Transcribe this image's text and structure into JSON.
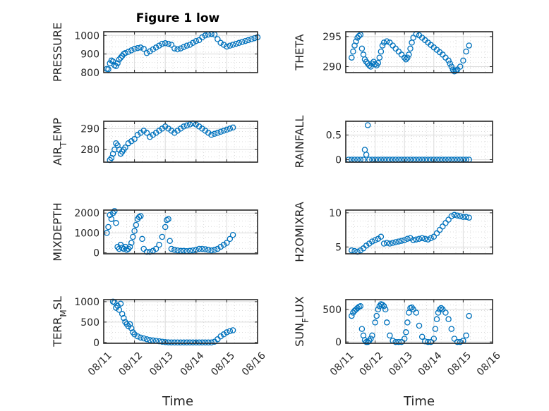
{
  "figure": {
    "title": "Figure 1 low",
    "marker_color": "#0072BD",
    "xlabel": "Time",
    "xtick_labels": [
      "08/11",
      "08/12",
      "08/13",
      "08/14",
      "08/15",
      "08/16"
    ]
  },
  "chart_data": [
    {
      "type": "scatter",
      "ylabel_main": "PRESSURE",
      "ylabel_sub": "",
      "ylabel_tail": "",
      "yticks": [
        800,
        900,
        1000
      ],
      "ylim": [
        800,
        1020
      ],
      "xlim": [
        0,
        5
      ],
      "grid": true,
      "x": [
        0.1,
        0.15,
        0.2,
        0.25,
        0.3,
        0.35,
        0.4,
        0.45,
        0.5,
        0.55,
        0.6,
        0.65,
        0.7,
        0.8,
        0.9,
        1.0,
        1.1,
        1.2,
        1.3,
        1.4,
        1.5,
        1.6,
        1.7,
        1.8,
        1.9,
        2.0,
        2.1,
        2.2,
        2.3,
        2.4,
        2.5,
        2.6,
        2.7,
        2.8,
        2.9,
        3.0,
        3.1,
        3.2,
        3.3,
        3.4,
        3.5,
        3.6,
        3.7,
        3.8,
        3.9,
        4.0,
        4.1,
        4.2,
        4.3,
        4.4,
        4.5,
        4.6,
        4.7,
        4.8,
        4.9,
        5.0
      ],
      "y": [
        820,
        818,
        850,
        865,
        860,
        840,
        835,
        850,
        870,
        880,
        890,
        900,
        905,
        912,
        920,
        928,
        932,
        935,
        928,
        905,
        915,
        925,
        935,
        945,
        955,
        958,
        955,
        950,
        930,
        925,
        930,
        938,
        945,
        950,
        960,
        970,
        975,
        990,
        1000,
        1005,
        1008,
        1005,
        980,
        960,
        950,
        940,
        945,
        950,
        955,
        960,
        965,
        970,
        975,
        980,
        985,
        990
      ]
    },
    {
      "type": "scatter",
      "ylabel_main": "THETA",
      "ylabel_sub": "",
      "ylabel_tail": "",
      "yticks": [
        290,
        295
      ],
      "ylim": [
        289,
        295.8
      ],
      "xlim": [
        0,
        5
      ],
      "grid": true,
      "x": [
        0.2,
        0.25,
        0.3,
        0.35,
        0.4,
        0.45,
        0.5,
        0.55,
        0.6,
        0.65,
        0.7,
        0.75,
        0.8,
        0.85,
        0.9,
        0.95,
        1.0,
        1.05,
        1.1,
        1.15,
        1.2,
        1.25,
        1.3,
        1.4,
        1.5,
        1.6,
        1.7,
        1.8,
        1.9,
        2.0,
        2.05,
        2.1,
        2.15,
        2.2,
        2.25,
        2.3,
        2.4,
        2.5,
        2.6,
        2.7,
        2.8,
        2.9,
        3.0,
        3.1,
        3.2,
        3.3,
        3.4,
        3.5,
        3.55,
        3.6,
        3.65,
        3.7,
        3.75,
        3.8,
        3.9,
        4.0,
        4.1,
        4.2
      ],
      "y": [
        291.5,
        292.5,
        293.5,
        294.2,
        294.8,
        295.1,
        295.3,
        293,
        292,
        291.2,
        290.8,
        290.5,
        290.2,
        290,
        290.5,
        290.8,
        290.4,
        290.2,
        290.6,
        291.5,
        292.5,
        293.5,
        294,
        294.2,
        294,
        293.5,
        293,
        292.5,
        292,
        291.5,
        291.2,
        291.5,
        292,
        293,
        294,
        294.8,
        295.4,
        295.2,
        294.8,
        294.4,
        294,
        293.6,
        293.2,
        292.8,
        292.4,
        292,
        291.5,
        291,
        290.5,
        290,
        289.5,
        289.2,
        289.3,
        289.5,
        290,
        291,
        292.5,
        293.5
      ]
    },
    {
      "type": "scatter",
      "ylabel_main": "AIR",
      "ylabel_sub": "T",
      "ylabel_tail": "EMP",
      "yticks": [
        280,
        290
      ],
      "ylim": [
        274,
        293.5
      ],
      "xlim": [
        0,
        5
      ],
      "grid": true,
      "x": [
        0.2,
        0.25,
        0.3,
        0.35,
        0.4,
        0.45,
        0.5,
        0.55,
        0.6,
        0.65,
        0.7,
        0.8,
        0.9,
        1.0,
        1.1,
        1.2,
        1.3,
        1.4,
        1.5,
        1.6,
        1.7,
        1.8,
        1.9,
        2.0,
        2.1,
        2.2,
        2.3,
        2.4,
        2.5,
        2.6,
        2.7,
        2.8,
        2.9,
        3.0,
        3.1,
        3.2,
        3.3,
        3.4,
        3.5,
        3.6,
        3.7,
        3.8,
        3.9,
        4.0,
        4.1,
        4.2
      ],
      "y": [
        275,
        276,
        278,
        280,
        283,
        282,
        280,
        278,
        279,
        280,
        281,
        283,
        284,
        285,
        287,
        288,
        289,
        288,
        286,
        287,
        288,
        289,
        290,
        291,
        290,
        289,
        288,
        289,
        290,
        291,
        291.5,
        292,
        292.5,
        292,
        291,
        290,
        289,
        288,
        287,
        287.5,
        288,
        288.5,
        289,
        289.5,
        290,
        290.5
      ]
    },
    {
      "type": "scatter",
      "ylabel_main": "RAINFALL",
      "ylabel_sub": "",
      "ylabel_tail": "",
      "yticks": [
        0,
        0.5
      ],
      "ylim": [
        -0.05,
        0.78
      ],
      "xlim": [
        0,
        5
      ],
      "grid": true,
      "x": [
        0.1,
        0.2,
        0.3,
        0.4,
        0.5,
        0.6,
        0.65,
        0.7,
        0.75,
        0.8,
        0.9,
        1.0,
        1.1,
        1.2,
        1.3,
        1.4,
        1.5,
        1.6,
        1.7,
        1.8,
        1.9,
        2.0,
        2.1,
        2.2,
        2.3,
        2.4,
        2.5,
        2.6,
        2.7,
        2.8,
        2.9,
        3.0,
        3.1,
        3.2,
        3.3,
        3.4,
        3.5,
        3.6,
        3.7,
        3.8,
        3.9,
        4.0,
        4.1,
        4.2
      ],
      "y": [
        0,
        0,
        0,
        0,
        0,
        0,
        0.2,
        0.1,
        0.7,
        0,
        0,
        0,
        0,
        0,
        0,
        0,
        0,
        0,
        0,
        0,
        0,
        0,
        0,
        0,
        0,
        0,
        0,
        0,
        0,
        0,
        0,
        0,
        0,
        0,
        0,
        0,
        0,
        0,
        0,
        0,
        0,
        0,
        0,
        0
      ]
    },
    {
      "type": "scatter",
      "ylabel_main": "MIXDEPTH",
      "ylabel_sub": "",
      "ylabel_tail": "",
      "yticks": [
        0,
        1000,
        2000
      ],
      "ylim": [
        -50,
        2150
      ],
      "xlim": [
        0,
        5
      ],
      "grid": true,
      "x": [
        0.1,
        0.15,
        0.2,
        0.25,
        0.3,
        0.35,
        0.4,
        0.45,
        0.5,
        0.55,
        0.6,
        0.65,
        0.7,
        0.75,
        0.8,
        0.85,
        0.9,
        0.95,
        1.0,
        1.05,
        1.1,
        1.15,
        1.2,
        1.25,
        1.3,
        1.4,
        1.5,
        1.6,
        1.7,
        1.8,
        1.9,
        2.0,
        2.05,
        2.1,
        2.15,
        2.2,
        2.3,
        2.4,
        2.5,
        2.6,
        2.7,
        2.8,
        2.9,
        3.0,
        3.1,
        3.2,
        3.3,
        3.4,
        3.5,
        3.6,
        3.7,
        3.8,
        3.9,
        4.0,
        4.1,
        4.2
      ],
      "y": [
        1000,
        1300,
        1900,
        1700,
        2000,
        2100,
        1500,
        300,
        200,
        400,
        250,
        200,
        300,
        150,
        200,
        300,
        500,
        800,
        1100,
        1400,
        1700,
        1800,
        1850,
        700,
        200,
        50,
        50,
        100,
        200,
        400,
        800,
        1300,
        1650,
        1700,
        600,
        200,
        150,
        120,
        100,
        100,
        80,
        100,
        120,
        150,
        200,
        200,
        180,
        150,
        120,
        150,
        200,
        300,
        400,
        500,
        700,
        900
      ]
    },
    {
      "type": "scatter",
      "ylabel_main": "H2OMIXRA",
      "ylabel_sub": "",
      "ylabel_tail": "",
      "yticks": [
        5,
        10
      ],
      "ylim": [
        4,
        10.4
      ],
      "xlim": [
        0,
        5
      ],
      "grid": true,
      "x": [
        0.2,
        0.3,
        0.4,
        0.5,
        0.6,
        0.7,
        0.8,
        0.9,
        1.0,
        1.1,
        1.2,
        1.3,
        1.4,
        1.5,
        1.6,
        1.7,
        1.8,
        1.9,
        2.0,
        2.1,
        2.2,
        2.3,
        2.4,
        2.5,
        2.6,
        2.7,
        2.8,
        2.9,
        3.0,
        3.1,
        3.2,
        3.3,
        3.4,
        3.5,
        3.6,
        3.7,
        3.8,
        3.9,
        4.0,
        4.1,
        4.2
      ],
      "y": [
        4.5,
        4.4,
        4.3,
        4.5,
        4.8,
        5.2,
        5.5,
        5.8,
        6.0,
        6.2,
        6.5,
        5.5,
        5.6,
        5.5,
        5.6,
        5.7,
        5.8,
        5.9,
        6.0,
        6.2,
        6.3,
        6.0,
        6.1,
        6.2,
        6.3,
        6.2,
        6.1,
        6.3,
        6.5,
        7.0,
        7.5,
        8.0,
        8.5,
        9.0,
        9.5,
        9.7,
        9.6,
        9.5,
        9.4,
        9.4,
        9.3
      ]
    },
    {
      "type": "scatter",
      "ylabel_main": "TERR",
      "ylabel_sub": "M",
      "ylabel_tail": "SL",
      "yticks": [
        0,
        500,
        1000
      ],
      "ylim": [
        -20,
        1050
      ],
      "xlim": [
        0,
        5
      ],
      "grid": true,
      "x": [
        0.3,
        0.35,
        0.4,
        0.45,
        0.5,
        0.55,
        0.6,
        0.65,
        0.7,
        0.75,
        0.8,
        0.85,
        0.9,
        0.95,
        1.0,
        1.1,
        1.2,
        1.3,
        1.4,
        1.5,
        1.6,
        1.7,
        1.8,
        1.9,
        2.0,
        2.1,
        2.2,
        2.3,
        2.4,
        2.5,
        2.6,
        2.7,
        2.8,
        2.9,
        3.0,
        3.1,
        3.2,
        3.3,
        3.4,
        3.5,
        3.6,
        3.7,
        3.8,
        3.9,
        4.0,
        4.1,
        4.2
      ],
      "y": [
        1000,
        980,
        850,
        900,
        800,
        950,
        700,
        600,
        500,
        450,
        400,
        450,
        350,
        250,
        200,
        150,
        120,
        100,
        80,
        60,
        50,
        40,
        30,
        20,
        10,
        5,
        2,
        1,
        0,
        0,
        0,
        0,
        0,
        0,
        0,
        0,
        0,
        0,
        0,
        0,
        20,
        80,
        150,
        200,
        250,
        280,
        300
      ]
    },
    {
      "type": "scatter",
      "ylabel_main": "SUN",
      "ylabel_sub": "F",
      "ylabel_tail": "LUX",
      "yticks": [
        0,
        500
      ],
      "ylim": [
        -20,
        650
      ],
      "xlim": [
        0,
        5
      ],
      "grid": true,
      "x": [
        0.2,
        0.25,
        0.3,
        0.35,
        0.4,
        0.45,
        0.5,
        0.55,
        0.6,
        0.65,
        0.7,
        0.75,
        0.8,
        0.85,
        0.9,
        1.0,
        1.05,
        1.1,
        1.15,
        1.2,
        1.25,
        1.3,
        1.35,
        1.4,
        1.5,
        1.6,
        1.7,
        1.8,
        1.9,
        2.0,
        2.05,
        2.1,
        2.15,
        2.2,
        2.25,
        2.3,
        2.4,
        2.5,
        2.6,
        2.7,
        2.8,
        2.9,
        3.0,
        3.05,
        3.1,
        3.15,
        3.2,
        3.25,
        3.3,
        3.4,
        3.5,
        3.6,
        3.7,
        3.8,
        3.9,
        4.0,
        4.1,
        4.2
      ],
      "y": [
        400,
        450,
        480,
        500,
        520,
        540,
        550,
        200,
        100,
        30,
        0,
        0,
        20,
        50,
        100,
        300,
        400,
        500,
        550,
        580,
        570,
        550,
        500,
        300,
        100,
        20,
        0,
        0,
        0,
        50,
        150,
        300,
        450,
        520,
        530,
        500,
        450,
        250,
        80,
        10,
        0,
        0,
        50,
        200,
        350,
        450,
        500,
        520,
        500,
        450,
        350,
        200,
        50,
        0,
        0,
        20,
        100,
        400
      ]
    }
  ]
}
